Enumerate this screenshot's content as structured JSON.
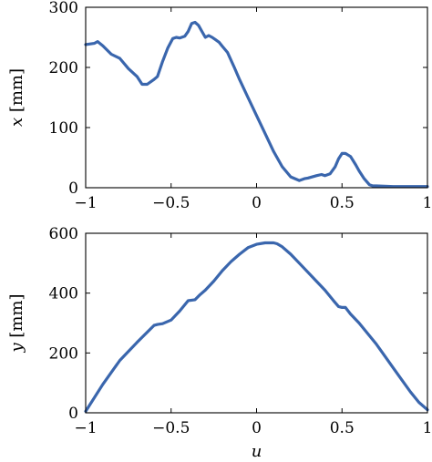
{
  "chart_data": [
    {
      "type": "line",
      "ylabel": {
        "var": "x",
        "unit": "[mm]"
      },
      "xlabel": "",
      "xlim": [
        -1,
        1
      ],
      "ylim": [
        0,
        300
      ],
      "xticks": [
        -1,
        -0.5,
        0,
        0.5,
        1
      ],
      "xtick_labels": [
        "−1",
        "−0.5",
        "0",
        "0.5",
        "1"
      ],
      "yticks": [
        0,
        100,
        200,
        300
      ],
      "ytick_labels": [
        "0",
        "100",
        "200",
        "300"
      ],
      "color": "#3a66ad",
      "series": [
        {
          "x": [
            -1,
            -0.95,
            -0.93,
            -0.9,
            -0.85,
            -0.8,
            -0.75,
            -0.7,
            -0.67,
            -0.64,
            -0.6,
            -0.58,
            -0.55,
            -0.52,
            -0.49,
            -0.47,
            -0.45,
            -0.42,
            -0.4,
            -0.38,
            -0.36,
            -0.34,
            -0.32,
            -0.3,
            -0.28,
            -0.26,
            -0.24,
            -0.22,
            -0.2,
            -0.17,
            -0.13,
            -0.1,
            -0.05,
            0,
            0.05,
            0.1,
            0.15,
            0.2,
            0.25,
            0.28,
            0.3,
            0.35,
            0.38,
            0.4,
            0.43,
            0.46,
            0.48,
            0.5,
            0.52,
            0.55,
            0.58,
            0.6,
            0.63,
            0.66,
            0.68,
            0.7,
            0.8,
            0.9,
            1
          ],
          "y": [
            238,
            240,
            243,
            236,
            222,
            215,
            198,
            185,
            172,
            172,
            180,
            185,
            210,
            232,
            248,
            250,
            249,
            252,
            260,
            273,
            275,
            270,
            260,
            250,
            253,
            250,
            246,
            242,
            235,
            225,
            200,
            180,
            150,
            120,
            90,
            60,
            35,
            18,
            12,
            15,
            16,
            20,
            22,
            20,
            23,
            35,
            48,
            57,
            57,
            52,
            38,
            28,
            15,
            5,
            3,
            3,
            2,
            2,
            2
          ]
        }
      ]
    },
    {
      "type": "line",
      "ylabel": {
        "var": "y",
        "unit": "[mm]"
      },
      "xlabel": "u",
      "xlim": [
        -1,
        1
      ],
      "ylim": [
        0,
        600
      ],
      "xticks": [
        -1,
        -0.5,
        0,
        0.5,
        1
      ],
      "xtick_labels": [
        "−1",
        "−0.5",
        "0",
        "0.5",
        "1"
      ],
      "yticks": [
        0,
        200,
        400,
        600
      ],
      "ytick_labels": [
        "0",
        "200",
        "400",
        "600"
      ],
      "color": "#3a66ad",
      "series": [
        {
          "x": [
            -1,
            -0.9,
            -0.8,
            -0.7,
            -0.6,
            -0.58,
            -0.55,
            -0.5,
            -0.45,
            -0.4,
            -0.36,
            -0.33,
            -0.3,
            -0.25,
            -0.2,
            -0.15,
            -0.1,
            -0.05,
            0,
            0.05,
            0.1,
            0.12,
            0.15,
            0.2,
            0.25,
            0.3,
            0.35,
            0.4,
            0.45,
            0.48,
            0.5,
            0.52,
            0.55,
            0.6,
            0.65,
            0.7,
            0.75,
            0.8,
            0.85,
            0.9,
            0.95,
            1
          ],
          "y": [
            5,
            95,
            175,
            235,
            292,
            295,
            298,
            310,
            340,
            375,
            378,
            395,
            410,
            440,
            475,
            505,
            530,
            552,
            563,
            568,
            568,
            565,
            555,
            530,
            500,
            470,
            440,
            410,
            375,
            355,
            352,
            352,
            330,
            300,
            265,
            230,
            190,
            150,
            110,
            70,
            35,
            10
          ]
        }
      ]
    }
  ]
}
